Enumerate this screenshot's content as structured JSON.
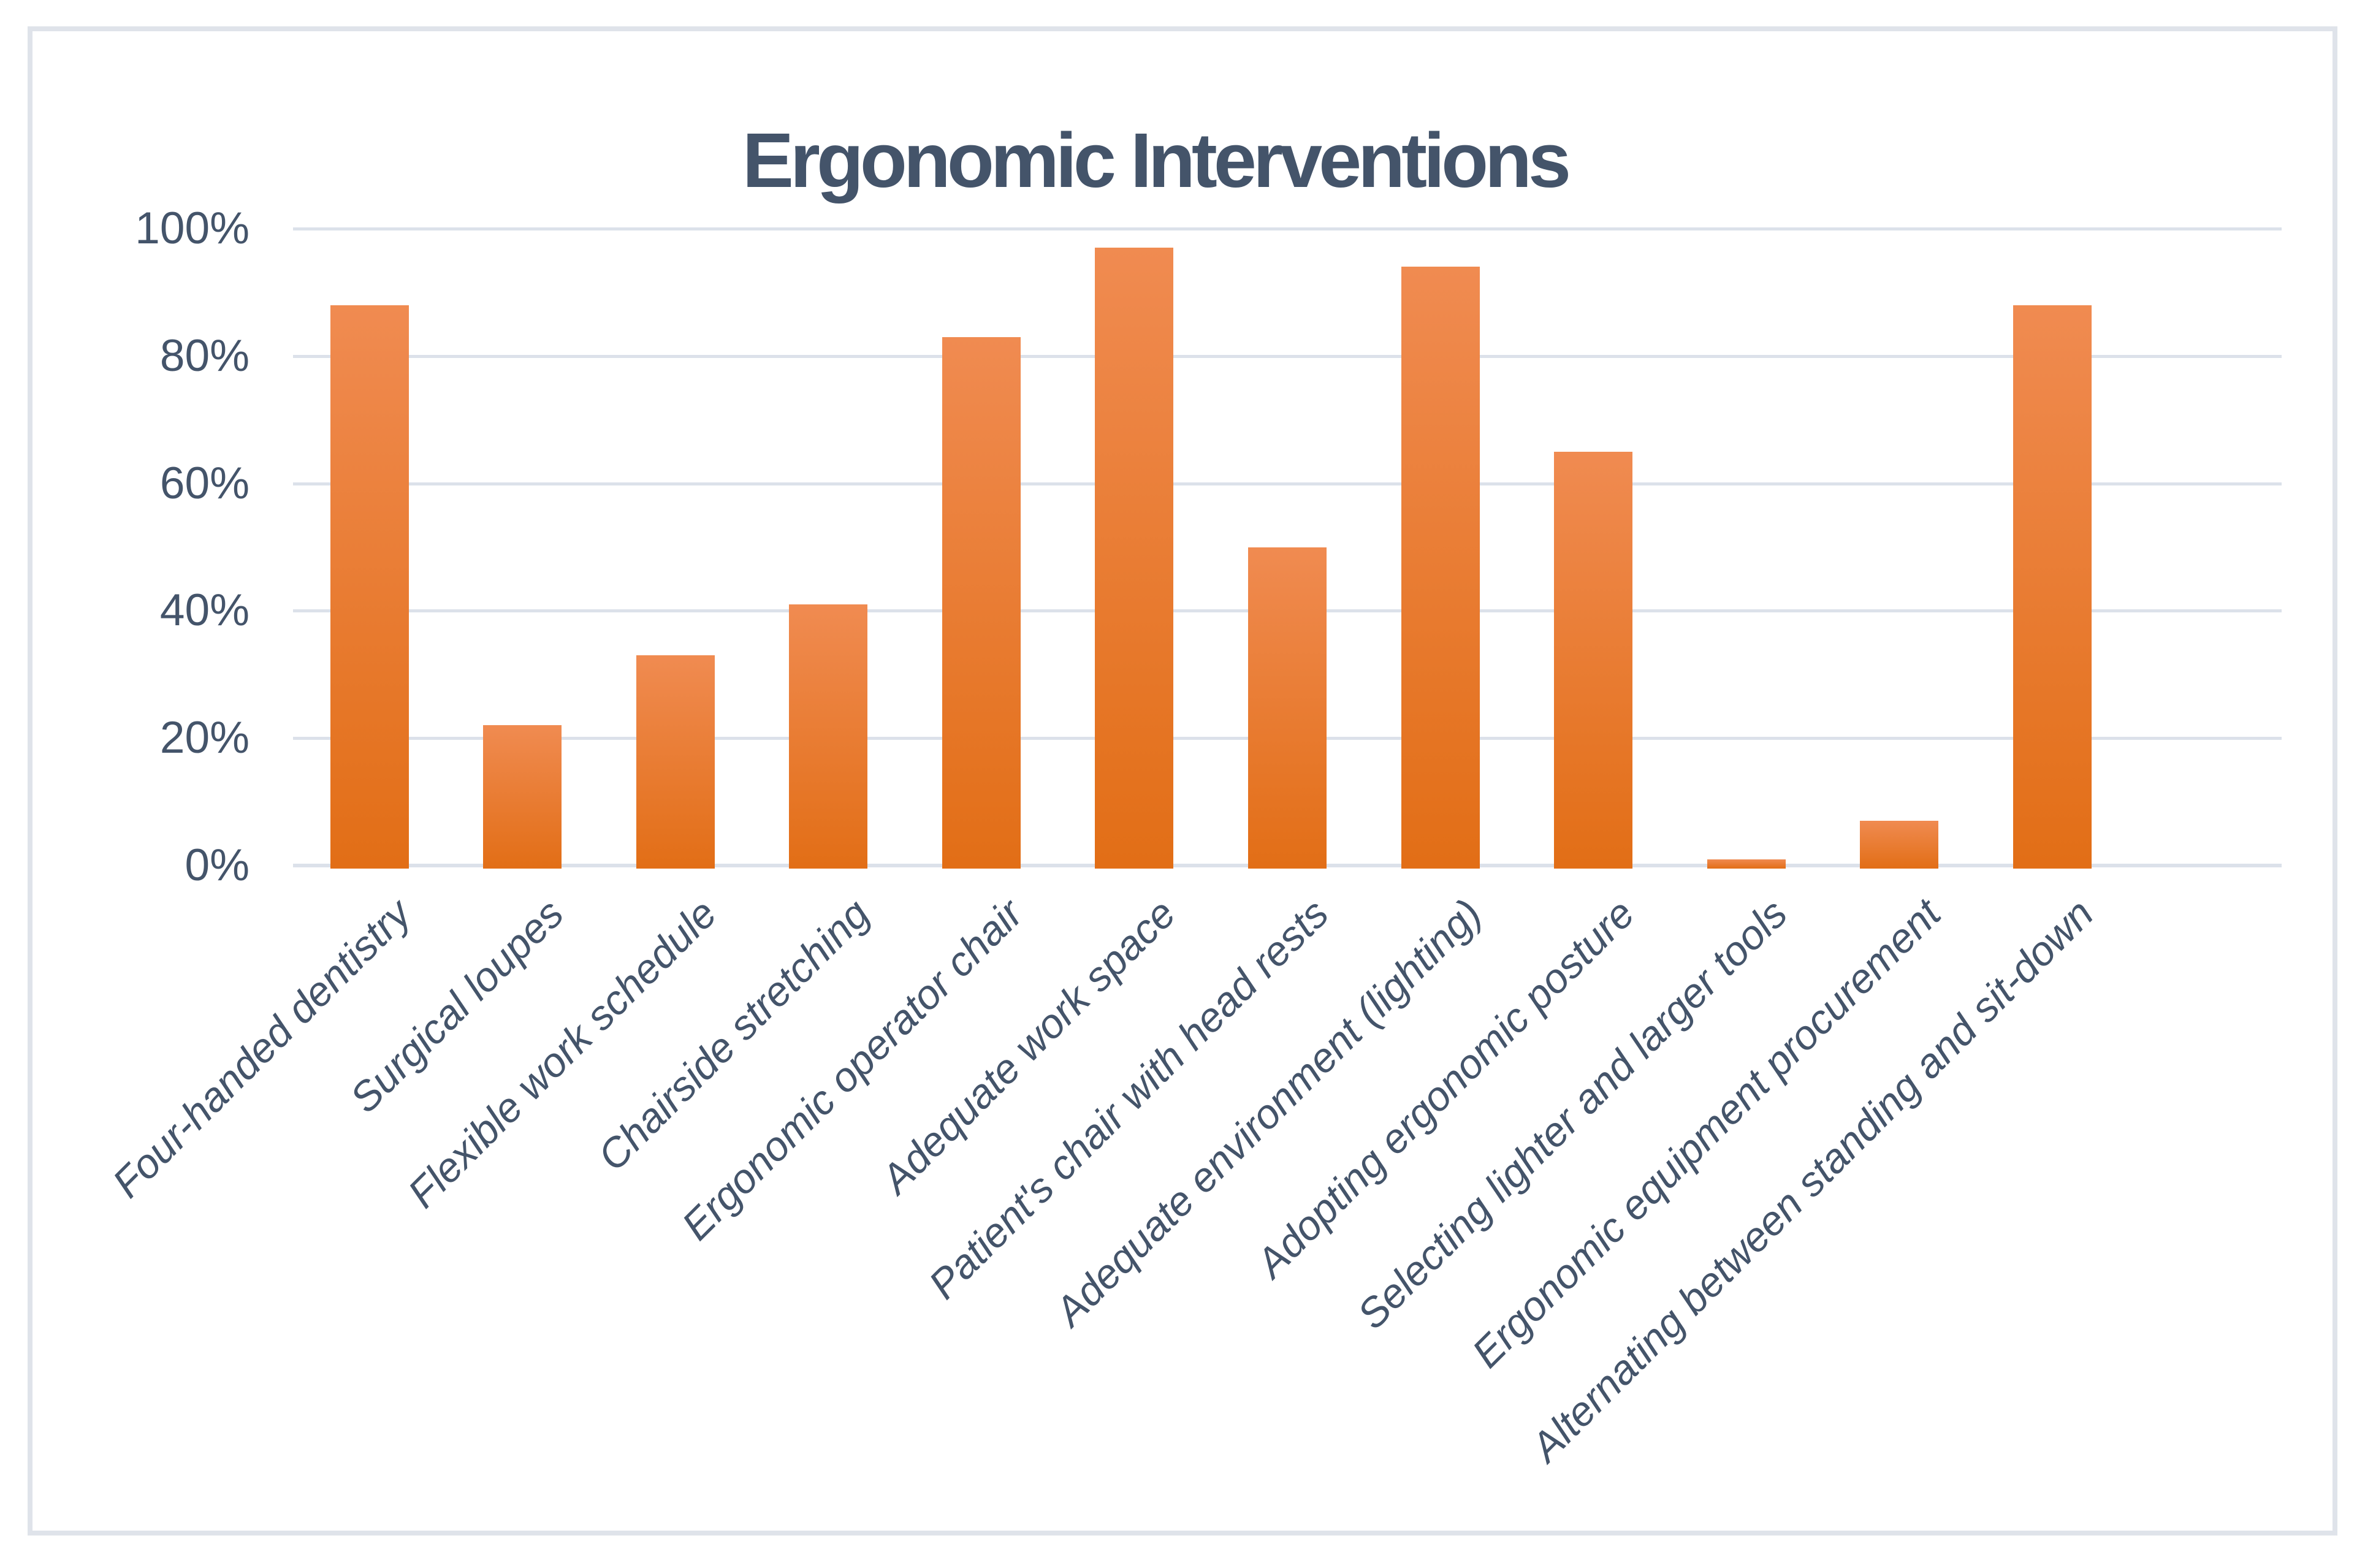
{
  "title": "Ergonomic Interventions",
  "colors": {
    "text": "#44546A",
    "gridline": "#DCE1EA",
    "frame_border": "#DFE3EA",
    "background": "#FFFFFF",
    "bar_gradient_top": "#F08B51",
    "bar_gradient_bottom": "#E26E16"
  },
  "chart_data": {
    "type": "bar",
    "title": "Ergonomic Interventions",
    "categories": [
      "Four-handed dentistry",
      "Surgical loupes",
      "Flexible work schedule",
      "Chairside stretching",
      "Ergonomic operator chair",
      "Adequate work space",
      "Patient's chair with head rests",
      "Adequate environment (lighting)",
      "Adopting ergonomic posture",
      "Selecting lighter and larger tools",
      "Ergonomic equipment procurement",
      "Alternating between standing and sit-down"
    ],
    "values": [
      88,
      22,
      33,
      41,
      83,
      97,
      50,
      94,
      65,
      1,
      7,
      88
    ],
    "unit": "%",
    "ylim": [
      0,
      100
    ],
    "y_ticks": [
      0,
      20,
      40,
      60,
      80,
      100
    ],
    "y_tick_labels": [
      "0%",
      "20%",
      "40%",
      "60%",
      "80%",
      "100%"
    ],
    "xlabel": "",
    "ylabel": "",
    "grid": true,
    "legend": false,
    "x_label_rotation_deg": 45,
    "empty_trailing_slots": 1
  }
}
